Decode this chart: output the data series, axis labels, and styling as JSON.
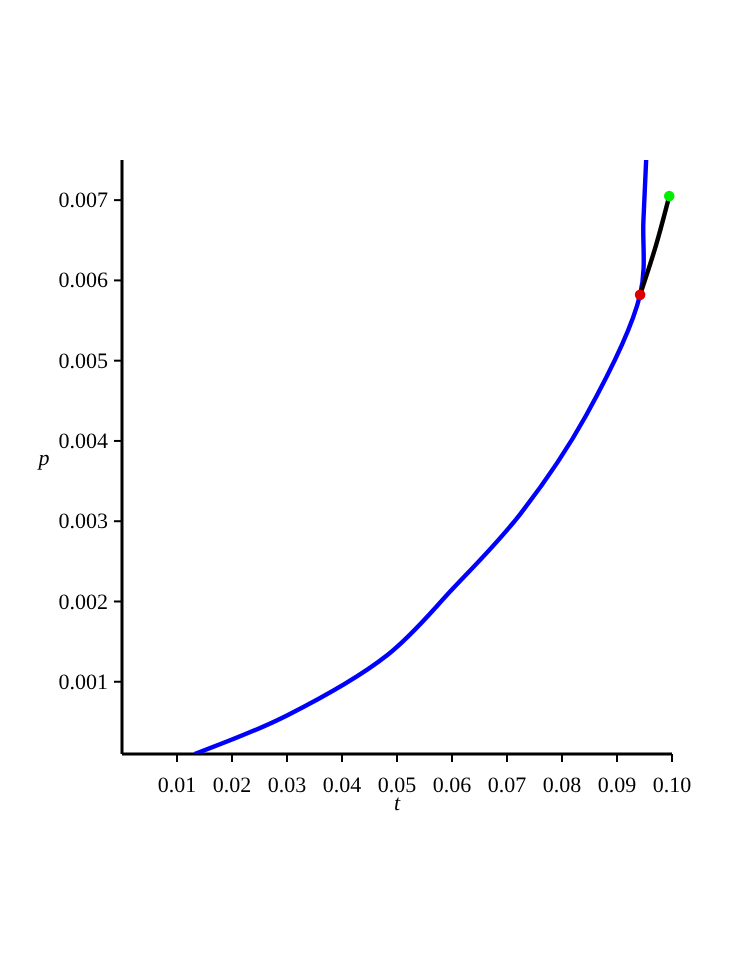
{
  "chart_data": {
    "type": "line",
    "xlabel": "t",
    "ylabel": "p",
    "xlim": [
      0,
      0.1
    ],
    "ylim": [
      0.0001,
      0.0075
    ],
    "xticks": [
      0.01,
      0.02,
      0.03,
      0.04,
      0.05,
      0.06,
      0.07,
      0.08,
      0.09,
      {
        "value": 0.1,
        "label": "0.10"
      }
    ],
    "yticks": [
      0.001,
      0.002,
      0.003,
      0.004,
      0.005,
      0.006,
      0.007
    ],
    "grid": false,
    "series": [
      {
        "color": "#0000ff",
        "x": [
          0.0132,
          0.03,
          0.0482,
          0.0603,
          0.0723,
          0.0844,
          0.0942,
          0.0948,
          0.0953
        ],
        "values": [
          0.0001,
          0.00058,
          0.00133,
          0.00217,
          0.00308,
          0.00432,
          0.00582,
          0.00674,
          0.0075
        ]
      },
      {
        "color": "#000000",
        "x": [
          0.0942,
          0.0971,
          0.0995
        ],
        "values": [
          0.00582,
          0.00644,
          0.00705
        ]
      },
      {
        "type": "scatter",
        "marker": "circle",
        "color": "#dd0000",
        "x": [
          0.0942
        ],
        "values": [
          0.00582
        ]
      },
      {
        "type": "scatter",
        "marker": "circle",
        "color": "#00ee00",
        "x": [
          0.0995
        ],
        "values": [
          0.00705
        ]
      }
    ]
  }
}
